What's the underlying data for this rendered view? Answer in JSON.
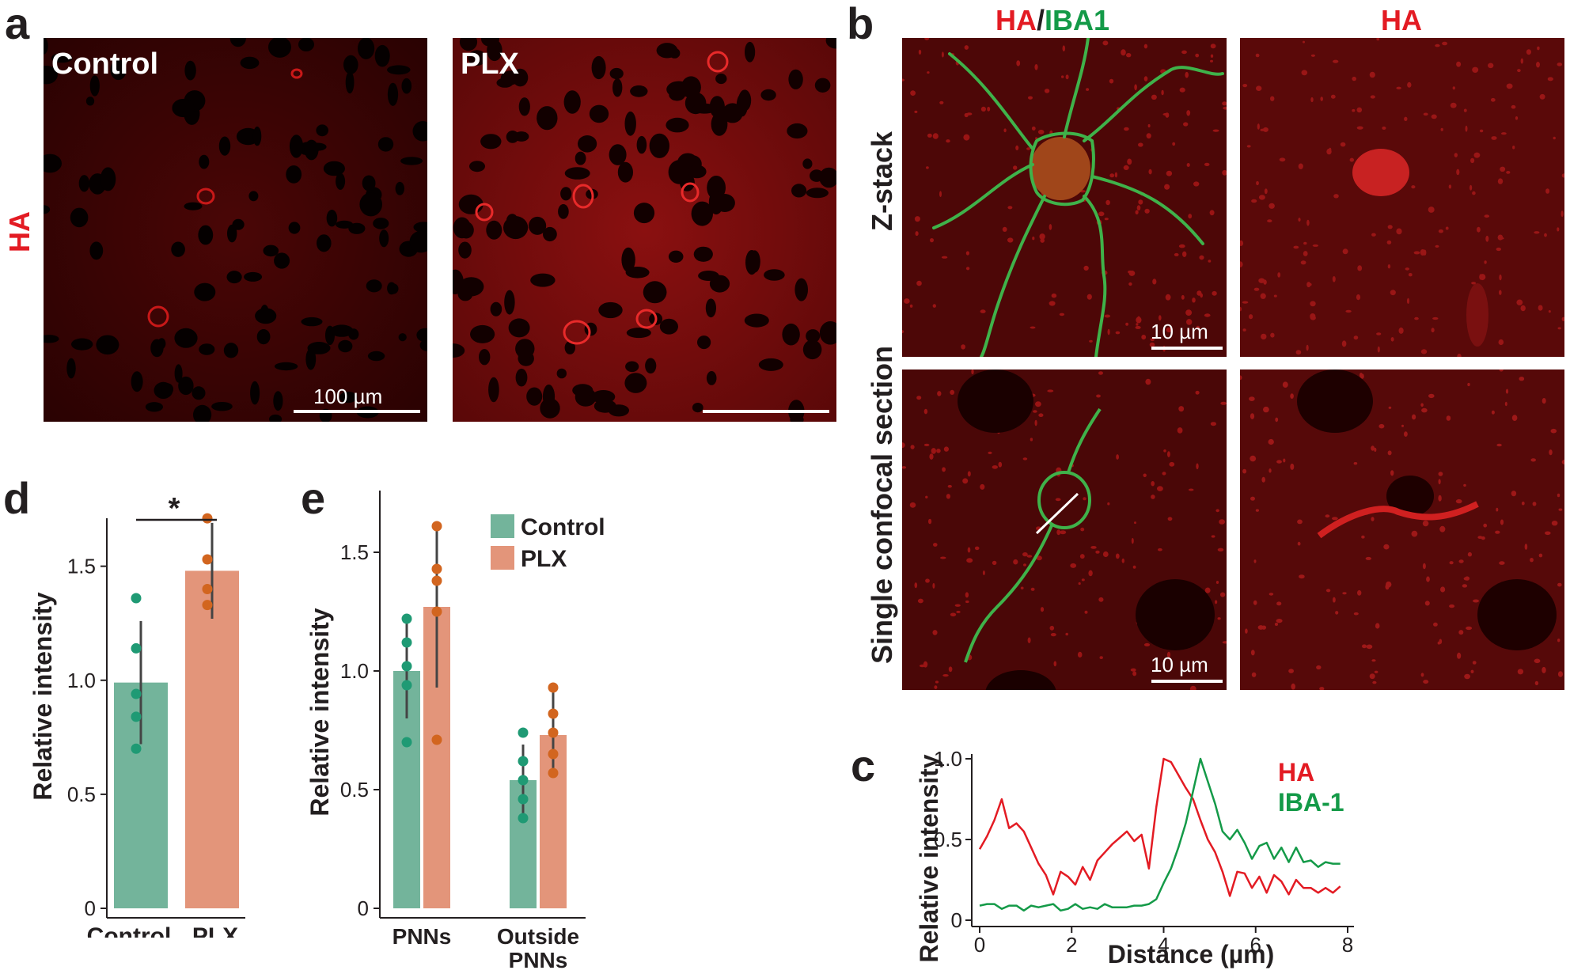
{
  "panel_labels": {
    "a": "a",
    "b": "b",
    "c": "c",
    "d": "d",
    "e": "e"
  },
  "panel_a": {
    "ylabel": "HA",
    "titles": [
      "Control",
      "PLX"
    ],
    "scalebar_label": "100 µm"
  },
  "panel_b": {
    "col_headers": {
      "merge_ha": "HA",
      "sep": "/",
      "merge_iba": "IBA1",
      "ha": "HA"
    },
    "row_labels": [
      "Z-stack",
      "Single confocal section"
    ],
    "scalebar_label": "10 µm"
  },
  "colors": {
    "ha_red": "#e31b23",
    "iba_green": "#149a48",
    "control_bar": "#73b49b",
    "control_dot": "#1f9a74",
    "plx_bar": "#e3957a",
    "plx_dot": "#d2651f"
  },
  "chart_data": [
    {
      "id": "c",
      "type": "line",
      "xlabel": "Distance (µm)",
      "ylabel": "Relative intensity",
      "xlim": [
        0,
        8
      ],
      "ylim": [
        0,
        1.0
      ],
      "xticks": [
        0,
        2,
        4,
        6,
        8
      ],
      "yticks": [
        0,
        0.5,
        1.0
      ],
      "ytick_labels": [
        "0",
        "0.5",
        "1.0"
      ],
      "series": [
        {
          "name": "HA",
          "color": "#e31b23",
          "x": [
            0,
            0.16,
            0.32,
            0.48,
            0.64,
            0.8,
            0.96,
            1.12,
            1.28,
            1.44,
            1.6,
            1.76,
            1.92,
            2.08,
            2.24,
            2.4,
            2.56,
            2.72,
            2.88,
            3.04,
            3.2,
            3.36,
            3.52,
            3.68,
            3.84,
            4.0,
            4.16,
            4.32,
            4.48,
            4.64,
            4.8,
            4.96,
            5.12,
            5.28,
            5.44,
            5.6,
            5.76,
            5.92,
            6.08,
            6.24,
            6.4,
            6.56,
            6.72,
            6.88,
            7.04,
            7.2,
            7.36,
            7.52,
            7.68,
            7.84
          ],
          "y": [
            0.44,
            0.52,
            0.62,
            0.75,
            0.57,
            0.6,
            0.55,
            0.45,
            0.35,
            0.28,
            0.16,
            0.3,
            0.27,
            0.22,
            0.33,
            0.25,
            0.37,
            0.42,
            0.47,
            0.51,
            0.55,
            0.49,
            0.53,
            0.32,
            0.7,
            1.0,
            0.98,
            0.9,
            0.82,
            0.75,
            0.62,
            0.5,
            0.42,
            0.3,
            0.15,
            0.3,
            0.29,
            0.2,
            0.27,
            0.17,
            0.28,
            0.24,
            0.16,
            0.25,
            0.2,
            0.2,
            0.17,
            0.2,
            0.17,
            0.21
          ]
        },
        {
          "name": "IBA-1",
          "color": "#149a48",
          "x": [
            0,
            0.16,
            0.32,
            0.48,
            0.64,
            0.8,
            0.96,
            1.12,
            1.28,
            1.44,
            1.6,
            1.76,
            1.92,
            2.08,
            2.24,
            2.4,
            2.56,
            2.72,
            2.88,
            3.04,
            3.2,
            3.36,
            3.52,
            3.68,
            3.84,
            4.0,
            4.16,
            4.32,
            4.48,
            4.64,
            4.8,
            4.96,
            5.12,
            5.28,
            5.44,
            5.6,
            5.76,
            5.92,
            6.08,
            6.24,
            6.4,
            6.56,
            6.72,
            6.88,
            7.04,
            7.2,
            7.36,
            7.52,
            7.68,
            7.84
          ],
          "y": [
            0.09,
            0.1,
            0.1,
            0.07,
            0.09,
            0.09,
            0.06,
            0.09,
            0.08,
            0.09,
            0.1,
            0.06,
            0.07,
            0.1,
            0.07,
            0.08,
            0.07,
            0.1,
            0.08,
            0.08,
            0.08,
            0.09,
            0.09,
            0.1,
            0.13,
            0.23,
            0.32,
            0.45,
            0.6,
            0.8,
            1.0,
            0.86,
            0.72,
            0.55,
            0.5,
            0.56,
            0.48,
            0.38,
            0.46,
            0.48,
            0.38,
            0.45,
            0.36,
            0.45,
            0.36,
            0.37,
            0.33,
            0.36,
            0.35,
            0.35
          ]
        }
      ]
    },
    {
      "id": "d",
      "type": "bar",
      "categories": [
        "Control",
        "PLX"
      ],
      "values": [
        0.99,
        1.48
      ],
      "errors": [
        0.27,
        0.21
      ],
      "points": [
        [
          0.7,
          0.84,
          0.94,
          1.14,
          1.36
        ],
        [
          1.33,
          1.4,
          1.53,
          1.71
        ]
      ],
      "ylabel": "Relative intensity",
      "ylim": [
        0,
        1.7
      ],
      "yticks": [
        0,
        0.5,
        1.0,
        1.5
      ],
      "ytick_labels": [
        "0",
        "0.5",
        "1.0",
        "1.5"
      ],
      "significance": "*"
    },
    {
      "id": "e",
      "type": "bar",
      "categories": [
        "PNNs",
        "Outside PNNs"
      ],
      "series": [
        {
          "name": "Control",
          "values": [
            1.0,
            0.54
          ],
          "errors": [
            0.2,
            0.15
          ],
          "points": [
            [
              0.7,
              0.94,
              1.02,
              1.12,
              1.22
            ],
            [
              0.38,
              0.46,
              0.54,
              0.62,
              0.74
            ]
          ]
        },
        {
          "name": "PLX",
          "values": [
            1.27,
            0.73
          ],
          "errors": [
            0.34,
            0.18
          ],
          "points": [
            [
              0.71,
              1.25,
              1.38,
              1.43,
              1.61
            ],
            [
              0.57,
              0.65,
              0.74,
              0.82,
              0.93
            ]
          ]
        }
      ],
      "ylabel": "Relative intensity",
      "ylim": [
        0,
        1.6
      ],
      "yticks": [
        0,
        0.5,
        1.0,
        1.5
      ],
      "ytick_labels": [
        "0",
        "0.5",
        "1.0",
        "1.5"
      ],
      "legend_position": "top-right"
    }
  ]
}
